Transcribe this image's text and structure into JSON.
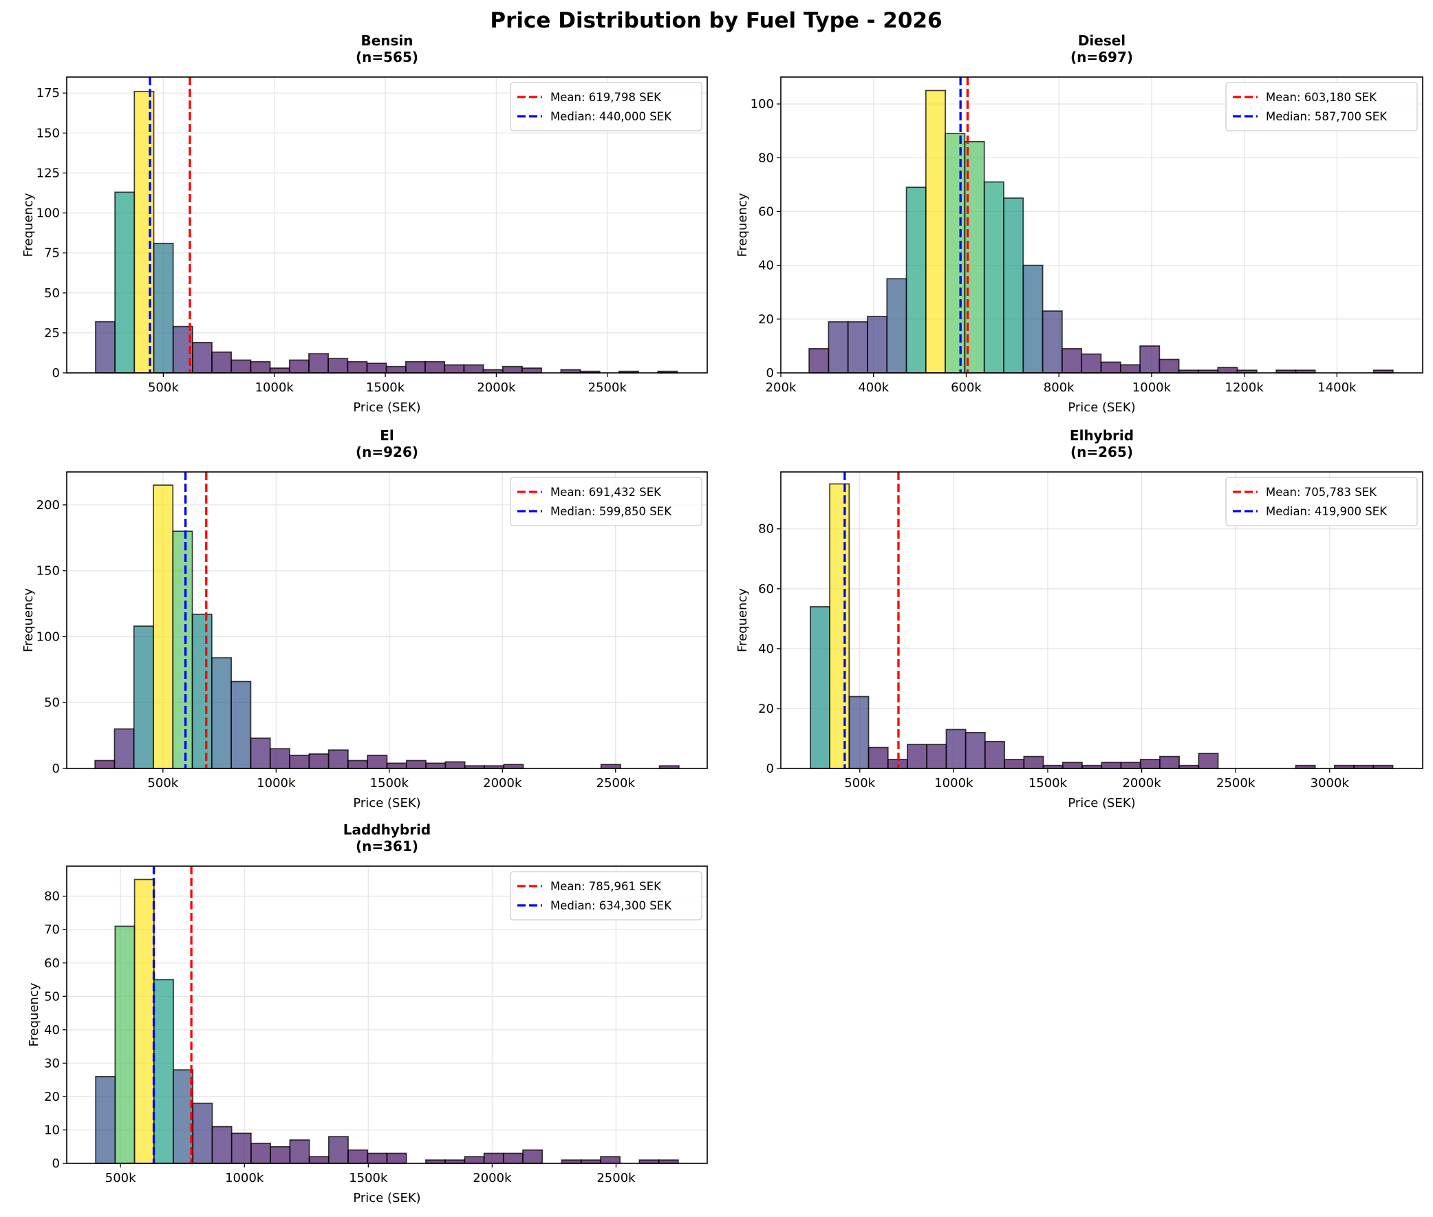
{
  "chart_data": {
    "type": "bar",
    "title": "Price Distribution by Fuel Type - 2026",
    "grid": true,
    "panels": [
      {
        "name": "Bensin",
        "n_label": "(n=565)",
        "xlabel": "Price (SEK)",
        "ylabel": "Frequency",
        "xlim": [
          65000,
          2950000
        ],
        "ylim": [
          0,
          185
        ],
        "xticks": [
          500000,
          1000000,
          1500000,
          2000000,
          2500000
        ],
        "xtick_labels": [
          "500k",
          "1000k",
          "1500k",
          "2000k",
          "2500k"
        ],
        "yticks": [
          0,
          25,
          50,
          75,
          100,
          125,
          150,
          175
        ],
        "bin_start": 195000,
        "bin_end": 2815000,
        "values": [
          32,
          113,
          176,
          81,
          29,
          19,
          13,
          8,
          7,
          3,
          8,
          12,
          9,
          7,
          6,
          4,
          7,
          7,
          5,
          5,
          2,
          4,
          3,
          0,
          2,
          1,
          0,
          1,
          0,
          1
        ],
        "mean": 619798,
        "median": 440000,
        "legend": {
          "mean_label": "Mean: 619,798 SEK",
          "median_label": "Median: 440,000 SEK",
          "position": "upper-right"
        }
      },
      {
        "name": "Diesel",
        "n_label": "(n=697)",
        "xlabel": "Price (SEK)",
        "ylabel": "Frequency",
        "xlim": [
          200000,
          1585000
        ],
        "ylim": [
          0,
          110
        ],
        "xticks": [
          200000,
          400000,
          600000,
          800000,
          1000000,
          1200000,
          1400000
        ],
        "xtick_labels": [
          "200k",
          "400k",
          "600k",
          "800k",
          "1000k",
          "1200k",
          "1400k"
        ],
        "yticks": [
          0,
          20,
          40,
          60,
          80,
          100
        ],
        "bin_start": 261000,
        "bin_end": 1521000,
        "values": [
          9,
          19,
          19,
          21,
          35,
          69,
          105,
          89,
          86,
          71,
          65,
          40,
          23,
          9,
          7,
          4,
          3,
          10,
          5,
          1,
          1,
          2,
          1,
          0,
          1,
          1,
          0,
          0,
          0,
          1
        ],
        "mean": 603180,
        "median": 587700,
        "legend": {
          "mean_label": "Mean: 603,180 SEK",
          "median_label": "Median: 587,700 SEK",
          "position": "upper-right"
        }
      },
      {
        "name": "El",
        "n_label": "(n=926)",
        "xlabel": "Price (SEK)",
        "ylabel": "Frequency",
        "xlim": [
          75000,
          2905000
        ],
        "ylim": [
          0,
          225
        ],
        "xticks": [
          500000,
          1000000,
          1500000,
          2000000,
          2500000
        ],
        "xtick_labels": [
          "500k",
          "1000k",
          "1500k",
          "2000k",
          "2500k"
        ],
        "yticks": [
          0,
          50,
          100,
          150,
          200
        ],
        "bin_start": 200000,
        "bin_end": 2780000,
        "values": [
          6,
          30,
          108,
          215,
          180,
          117,
          84,
          66,
          23,
          15,
          10,
          11,
          14,
          6,
          10,
          4,
          6,
          4,
          5,
          2,
          2,
          3,
          0,
          0,
          0,
          0,
          3,
          0,
          0,
          2
        ],
        "mean": 691432,
        "median": 599850,
        "legend": {
          "mean_label": "Mean: 691,432 SEK",
          "median_label": "Median: 599,850 SEK",
          "position": "upper-right"
        }
      },
      {
        "name": "Elhybrid",
        "n_label": "(n=265)",
        "xlabel": "Price (SEK)",
        "ylabel": "Frequency",
        "xlim": [
          80000,
          3495000
        ],
        "ylim": [
          0,
          99
        ],
        "xticks": [
          500000,
          1000000,
          1500000,
          2000000,
          2500000,
          3000000
        ],
        "xtick_labels": [
          "500k",
          "1000k",
          "1500k",
          "2000k",
          "2500k",
          "3000k"
        ],
        "yticks": [
          0,
          20,
          40,
          60,
          80
        ],
        "bin_start": 237000,
        "bin_end": 3336000,
        "values": [
          54,
          95,
          24,
          7,
          3,
          8,
          8,
          13,
          12,
          9,
          3,
          4,
          1,
          2,
          1,
          2,
          2,
          3,
          4,
          1,
          5,
          0,
          0,
          0,
          0,
          1,
          0,
          1,
          1,
          1
        ],
        "mean": 705783,
        "median": 419900,
        "legend": {
          "mean_label": "Mean: 705,783 SEK",
          "median_label": "Median: 419,900 SEK",
          "position": "upper-right"
        }
      },
      {
        "name": "Laddhybrid",
        "n_label": "(n=361)",
        "xlabel": "Price (SEK)",
        "ylabel": "Frequency",
        "xlim": [
          283000,
          2868000
        ],
        "ylim": [
          0,
          89
        ],
        "xticks": [
          500000,
          1000000,
          1500000,
          2000000,
          2500000
        ],
        "xtick_labels": [
          "500k",
          "1000k",
          "1500k",
          "2000k",
          "2500k"
        ],
        "yticks": [
          0,
          10,
          20,
          30,
          40,
          50,
          60,
          70,
          80
        ],
        "bin_start": 400000,
        "bin_end": 2751000,
        "values": [
          26,
          71,
          85,
          55,
          28,
          18,
          11,
          9,
          6,
          5,
          7,
          2,
          8,
          4,
          3,
          3,
          0,
          1,
          1,
          2,
          3,
          3,
          4,
          0,
          1,
          1,
          2,
          0,
          1,
          1
        ],
        "mean": 785961,
        "median": 634300,
        "legend": {
          "mean_label": "Mean: 785,961 SEK",
          "median_label": "Median: 634,300 SEK",
          "position": "upper-right"
        }
      }
    ]
  },
  "colors": {
    "mean_line": "#ff0000",
    "median_line": "#0000ff",
    "bar_edge": "#000000",
    "grid": "#e5e5e5",
    "colormap": "viridis"
  }
}
